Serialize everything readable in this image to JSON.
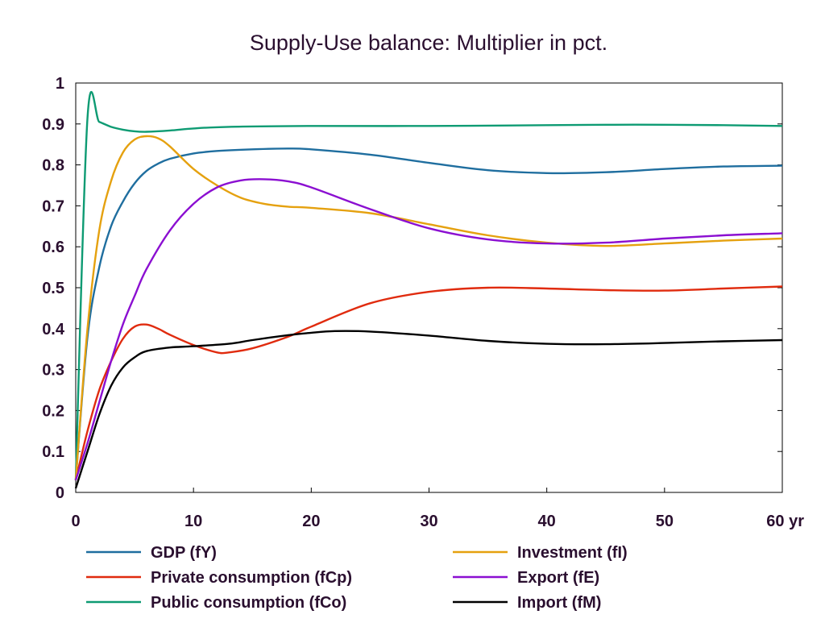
{
  "chart_data": {
    "type": "line",
    "title": "Supply-Use balance: Multiplier in pct.",
    "xlabel": "",
    "ylabel": "",
    "x_unit": "yr",
    "xlim": [
      0,
      60
    ],
    "ylim": [
      0,
      1
    ],
    "x_ticks": [
      "0",
      "10",
      "20",
      "30",
      "40",
      "50",
      "60 yr"
    ],
    "y_ticks": [
      "0",
      "0.1",
      "0.2",
      "0.3",
      "0.4",
      "0.5",
      "0.6",
      "0.7",
      "0.8",
      "0.9",
      "1"
    ],
    "grid": false,
    "legend_position": "bottom",
    "series": [
      {
        "name": "GDP (fY)",
        "color": "#1f6e9f",
        "points": [
          [
            0,
            0.03
          ],
          [
            1,
            0.38
          ],
          [
            2,
            0.55
          ],
          [
            3,
            0.65
          ],
          [
            4,
            0.71
          ],
          [
            5,
            0.755
          ],
          [
            6,
            0.785
          ],
          [
            7,
            0.803
          ],
          [
            8,
            0.815
          ],
          [
            10,
            0.828
          ],
          [
            12,
            0.834
          ],
          [
            15,
            0.838
          ],
          [
            18,
            0.84
          ],
          [
            20,
            0.838
          ],
          [
            25,
            0.825
          ],
          [
            30,
            0.805
          ],
          [
            35,
            0.787
          ],
          [
            40,
            0.78
          ],
          [
            45,
            0.782
          ],
          [
            50,
            0.79
          ],
          [
            55,
            0.796
          ],
          [
            60,
            0.798
          ]
        ]
      },
      {
        "name": "Private consumption (fCp)",
        "color": "#e02b0e",
        "points": [
          [
            0,
            0.03
          ],
          [
            1,
            0.15
          ],
          [
            2,
            0.25
          ],
          [
            3,
            0.32
          ],
          [
            4,
            0.375
          ],
          [
            5,
            0.405
          ],
          [
            6,
            0.41
          ],
          [
            7,
            0.4
          ],
          [
            8,
            0.385
          ],
          [
            10,
            0.36
          ],
          [
            12,
            0.342
          ],
          [
            13,
            0.342
          ],
          [
            15,
            0.352
          ],
          [
            18,
            0.38
          ],
          [
            20,
            0.405
          ],
          [
            25,
            0.462
          ],
          [
            30,
            0.49
          ],
          [
            35,
            0.5
          ],
          [
            40,
            0.498
          ],
          [
            45,
            0.494
          ],
          [
            50,
            0.493
          ],
          [
            55,
            0.498
          ],
          [
            60,
            0.503
          ]
        ]
      },
      {
        "name": "Public consumption (fCo)",
        "color": "#0e9b73",
        "points": [
          [
            0,
            0.03
          ],
          [
            1,
            0.915
          ],
          [
            2,
            0.905
          ],
          [
            3,
            0.893
          ],
          [
            4,
            0.886
          ],
          [
            5,
            0.882
          ],
          [
            6,
            0.881
          ],
          [
            8,
            0.884
          ],
          [
            10,
            0.889
          ],
          [
            13,
            0.893
          ],
          [
            20,
            0.895
          ],
          [
            30,
            0.895
          ],
          [
            40,
            0.897
          ],
          [
            45,
            0.898
          ],
          [
            50,
            0.898
          ],
          [
            55,
            0.897
          ],
          [
            60,
            0.895
          ]
        ]
      },
      {
        "name": "Investment (fI)",
        "color": "#e5a10f",
        "points": [
          [
            0,
            0.03
          ],
          [
            1,
            0.4
          ],
          [
            2,
            0.64
          ],
          [
            3,
            0.76
          ],
          [
            4,
            0.83
          ],
          [
            5,
            0.862
          ],
          [
            6,
            0.87
          ],
          [
            7,
            0.865
          ],
          [
            8,
            0.845
          ],
          [
            10,
            0.79
          ],
          [
            12,
            0.75
          ],
          [
            14,
            0.72
          ],
          [
            16,
            0.705
          ],
          [
            18,
            0.698
          ],
          [
            20,
            0.695
          ],
          [
            25,
            0.682
          ],
          [
            30,
            0.655
          ],
          [
            35,
            0.628
          ],
          [
            40,
            0.61
          ],
          [
            45,
            0.602
          ],
          [
            50,
            0.608
          ],
          [
            55,
            0.615
          ],
          [
            60,
            0.62
          ]
        ]
      },
      {
        "name": "Export (fE)",
        "color": "#8b0fd1",
        "points": [
          [
            0,
            0.03
          ],
          [
            1,
            0.12
          ],
          [
            2,
            0.22
          ],
          [
            3,
            0.32
          ],
          [
            4,
            0.41
          ],
          [
            5,
            0.48
          ],
          [
            6,
            0.545
          ],
          [
            8,
            0.64
          ],
          [
            10,
            0.705
          ],
          [
            12,
            0.745
          ],
          [
            14,
            0.762
          ],
          [
            16,
            0.765
          ],
          [
            18,
            0.76
          ],
          [
            20,
            0.745
          ],
          [
            25,
            0.692
          ],
          [
            30,
            0.645
          ],
          [
            35,
            0.618
          ],
          [
            40,
            0.608
          ],
          [
            45,
            0.61
          ],
          [
            50,
            0.62
          ],
          [
            55,
            0.628
          ],
          [
            60,
            0.633
          ]
        ]
      },
      {
        "name": "Import (fM)",
        "color": "#000000",
        "points": [
          [
            0,
            0.01
          ],
          [
            1,
            0.1
          ],
          [
            2,
            0.19
          ],
          [
            3,
            0.26
          ],
          [
            4,
            0.305
          ],
          [
            5,
            0.33
          ],
          [
            6,
            0.345
          ],
          [
            8,
            0.354
          ],
          [
            10,
            0.357
          ],
          [
            13,
            0.363
          ],
          [
            15,
            0.372
          ],
          [
            18,
            0.384
          ],
          [
            20,
            0.39
          ],
          [
            22,
            0.394
          ],
          [
            25,
            0.393
          ],
          [
            30,
            0.383
          ],
          [
            35,
            0.37
          ],
          [
            40,
            0.363
          ],
          [
            45,
            0.362
          ],
          [
            50,
            0.365
          ],
          [
            55,
            0.369
          ],
          [
            60,
            0.372
          ]
        ]
      }
    ]
  }
}
